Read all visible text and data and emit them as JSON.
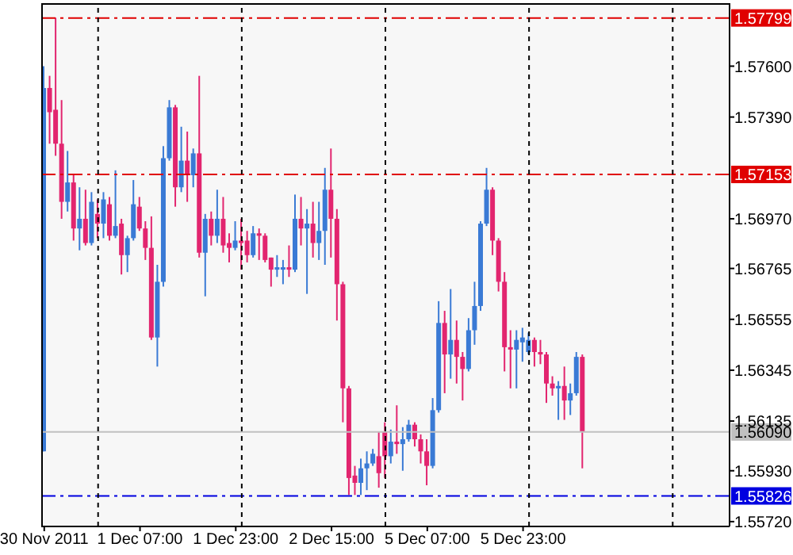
{
  "chart_data": {
    "type": "candlestick",
    "categories": [
      "30 Nov 2011",
      null,
      null,
      null,
      null,
      null,
      null,
      null,
      null,
      null,
      null,
      null,
      null,
      null,
      null,
      null,
      "1 Dec 07:00",
      null,
      null,
      null,
      null,
      null,
      null,
      null,
      null,
      null,
      null,
      null,
      null,
      null,
      null,
      null,
      "1 Dec 23:00",
      null,
      null,
      null,
      null,
      null,
      null,
      null,
      null,
      null,
      null,
      null,
      null,
      null,
      null,
      null,
      "2 Dec 15:00",
      null,
      null,
      null,
      null,
      null,
      null,
      null,
      null,
      null,
      null,
      null,
      null,
      null,
      null,
      null,
      "5 Dec 07:00",
      null,
      null,
      null,
      null,
      null,
      null,
      null,
      null,
      null,
      null,
      null,
      null,
      null,
      null,
      null,
      "5 Dec 23:00",
      null,
      null,
      null,
      null,
      null,
      null,
      null,
      null,
      null,
      null,
      null,
      null,
      null,
      null,
      null,
      null,
      null,
      null,
      null,
      null,
      null,
      null,
      null,
      null,
      null,
      null,
      null,
      null,
      null,
      null,
      null,
      null,
      null,
      null
    ],
    "ohlc": [
      [
        1.5601,
        1.576,
        1.5601,
        1.5751
      ],
      [
        1.5751,
        1.5756,
        1.5728,
        1.5741
      ],
      [
        1.5742,
        1.578,
        1.5723,
        1.5728
      ],
      [
        1.5728,
        1.5746,
        1.5697,
        1.5704
      ],
      [
        1.5704,
        1.5725,
        1.57,
        1.5712
      ],
      [
        1.5712,
        1.5715,
        1.5688,
        1.5693
      ],
      [
        1.5693,
        1.571,
        1.5684,
        1.5697
      ],
      [
        1.5697,
        1.5709,
        1.5686,
        1.5687
      ],
      [
        1.5687,
        1.5708,
        1.5686,
        1.5704
      ],
      [
        1.5699,
        1.5705,
        1.5689,
        1.5695
      ],
      [
        1.5695,
        1.5708,
        1.5689,
        1.5705
      ],
      [
        1.5703,
        1.5706,
        1.5688,
        1.569
      ],
      [
        1.569,
        1.5717,
        1.5689,
        1.5694
      ],
      [
        1.5695,
        1.5697,
        1.5674,
        1.5682
      ],
      [
        1.5682,
        1.569,
        1.5675,
        1.5689
      ],
      [
        1.5689,
        1.5713,
        1.5688,
        1.5703
      ],
      [
        1.5702,
        1.5706,
        1.5692,
        1.5693
      ],
      [
        1.5693,
        1.5696,
        1.568,
        1.5685
      ],
      [
        1.5685,
        1.5698,
        1.5647,
        1.5648
      ],
      [
        1.5648,
        1.5678,
        1.5636,
        1.5671
      ],
      [
        1.5671,
        1.5727,
        1.5669,
        1.5722
      ],
      [
        1.5722,
        1.5746,
        1.5721,
        1.5743
      ],
      [
        1.5743,
        1.5744,
        1.5702,
        1.571
      ],
      [
        1.571,
        1.5735,
        1.5708,
        1.5721
      ],
      [
        1.5721,
        1.5733,
        1.5704,
        1.5715
      ],
      [
        1.5715,
        1.5726,
        1.571,
        1.5724
      ],
      [
        1.5724,
        1.5756,
        1.5681,
        1.5683
      ],
      [
        1.5683,
        1.5699,
        1.5665,
        1.5697
      ],
      [
        1.5697,
        1.57,
        1.5686,
        1.569
      ],
      [
        1.569,
        1.5709,
        1.5687,
        1.5697
      ],
      [
        1.5697,
        1.5706,
        1.5683,
        1.5686
      ],
      [
        1.5687,
        1.5691,
        1.5679,
        1.5685
      ],
      [
        1.5685,
        1.5696,
        1.5684,
        1.5688
      ],
      [
        1.5688,
        1.5697,
        1.5676,
        1.5687
      ],
      [
        1.5688,
        1.5692,
        1.5679,
        1.5682
      ],
      [
        1.5682,
        1.5694,
        1.5681,
        1.5691
      ],
      [
        1.5691,
        1.5693,
        1.568,
        1.569
      ],
      [
        1.569,
        1.5691,
        1.5679,
        1.568
      ],
      [
        1.5681,
        1.5681,
        1.5669,
        1.5676
      ],
      [
        1.5676,
        1.5682,
        1.5673,
        1.5677
      ],
      [
        1.5676,
        1.568,
        1.567,
        1.5677
      ],
      [
        1.5677,
        1.5686,
        1.5673,
        1.5676
      ],
      [
        1.5676,
        1.5707,
        1.5675,
        1.5697
      ],
      [
        1.5697,
        1.5706,
        1.5686,
        1.5693
      ],
      [
        1.5693,
        1.5701,
        1.5666,
        1.5695
      ],
      [
        1.5695,
        1.5704,
        1.5681,
        1.5687
      ],
      [
        1.5687,
        1.5704,
        1.568,
        1.5692
      ],
      [
        1.5692,
        1.5718,
        1.5678,
        1.5709
      ],
      [
        1.5709,
        1.5726,
        1.5681,
        1.5697
      ],
      [
        1.5697,
        1.5701,
        1.5655,
        1.567
      ],
      [
        1.567,
        1.5671,
        1.5613,
        1.5627
      ],
      [
        1.5627,
        1.5628,
        1.5583,
        1.559
      ],
      [
        1.5591,
        1.5595,
        1.5583,
        1.5588
      ],
      [
        1.5588,
        1.5598,
        1.5583,
        1.5594
      ],
      [
        1.5594,
        1.5601,
        1.5585,
        1.5596
      ],
      [
        1.5596,
        1.5602,
        1.5595,
        1.56
      ],
      [
        1.5599,
        1.5609,
        1.5586,
        1.5592
      ],
      [
        1.5609,
        1.5613,
        1.559,
        1.5599
      ],
      [
        1.5599,
        1.561,
        1.5596,
        1.5605
      ],
      [
        1.5605,
        1.562,
        1.56,
        1.5604
      ],
      [
        1.5604,
        1.5611,
        1.5593,
        1.5606
      ],
      [
        1.5606,
        1.5614,
        1.5605,
        1.5612
      ],
      [
        1.5612,
        1.5613,
        1.5603,
        1.5606
      ],
      [
        1.5606,
        1.5608,
        1.5596,
        1.5601
      ],
      [
        1.5601,
        1.5606,
        1.5587,
        1.5595
      ],
      [
        1.5595,
        1.5623,
        1.5594,
        1.5618
      ],
      [
        1.5618,
        1.5663,
        1.5617,
        1.5654
      ],
      [
        1.5654,
        1.5659,
        1.5625,
        1.5641
      ],
      [
        1.5641,
        1.5668,
        1.5631,
        1.5647
      ],
      [
        1.5647,
        1.5655,
        1.5629,
        1.564
      ],
      [
        1.564,
        1.5642,
        1.5622,
        1.5635
      ],
      [
        1.5635,
        1.5656,
        1.5634,
        1.5651
      ],
      [
        1.5651,
        1.5671,
        1.5645,
        1.5661
      ],
      [
        1.5661,
        1.5696,
        1.5659,
        1.5695
      ],
      [
        1.5695,
        1.5718,
        1.5694,
        1.5709
      ],
      [
        1.5709,
        1.571,
        1.5682,
        1.5688
      ],
      [
        1.5688,
        1.5689,
        1.5667,
        1.5671
      ],
      [
        1.5671,
        1.5675,
        1.5634,
        1.5644
      ],
      [
        1.5644,
        1.5651,
        1.5627,
        1.5643
      ],
      [
        1.5643,
        1.5651,
        1.5627,
        1.5647
      ],
      [
        1.5646,
        1.5652,
        1.5638,
        1.5648
      ],
      [
        1.5642,
        1.565,
        1.5641,
        1.5647
      ],
      [
        1.5647,
        1.5648,
        1.5636,
        1.5642
      ],
      [
        1.5642,
        1.5647,
        1.5637,
        1.5641
      ],
      [
        1.5641,
        1.5642,
        1.5621,
        1.5629
      ],
      [
        1.5629,
        1.5632,
        1.5624,
        1.5627
      ],
      [
        1.5627,
        1.563,
        1.5614,
        1.5628
      ],
      [
        1.5628,
        1.5636,
        1.5614,
        1.5622
      ],
      [
        1.5622,
        1.5629,
        1.5616,
        1.5625
      ],
      [
        1.5625,
        1.5642,
        1.5624,
        1.564
      ],
      [
        1.564,
        1.5641,
        1.5594,
        1.5609
      ],
      null,
      null,
      null,
      null,
      null,
      null,
      null,
      null,
      null,
      null,
      null,
      null,
      null,
      null,
      null,
      null,
      null,
      null,
      null,
      null,
      null,
      null,
      null,
      null
    ],
    "colors": [
      "#3a7ad5",
      "#e2256f",
      "#e2256f",
      "#e2256f",
      "#3a7ad5",
      "#e2256f",
      "#3a7ad5",
      "#e2256f",
      "#3a7ad5",
      "#e2256f",
      "#3a7ad5",
      "#e2256f",
      "#3a7ad5",
      "#e2256f",
      "#3a7ad5",
      "#3a7ad5",
      "#e2256f",
      "#e2256f",
      "#e2256f",
      "#3a7ad5",
      "#3a7ad5",
      "#3a7ad5",
      "#e2256f",
      "#3a7ad5",
      "#e2256f",
      "#3a7ad5",
      "#e2256f",
      "#3a7ad5",
      "#e2256f",
      "#3a7ad5",
      "#e2256f",
      "#e2256f",
      "#3a7ad5",
      "#e2256f",
      "#e2256f",
      "#3a7ad5",
      "#e2256f",
      "#e2256f",
      "#e2256f",
      "#3a7ad5",
      "#3a7ad5",
      "#e2256f",
      "#3a7ad5",
      "#e2256f",
      "#3a7ad5",
      "#e2256f",
      "#3a7ad5",
      "#3a7ad5",
      "#e2256f",
      "#e2256f",
      "#e2256f",
      "#e2256f",
      "#e2256f",
      "#3a7ad5",
      "#3a7ad5",
      "#3a7ad5",
      "#e2256f",
      "#e2256f",
      "#3a7ad5",
      "#e2256f",
      "#3a7ad5",
      "#3a7ad5",
      "#e2256f",
      "#e2256f",
      "#e2256f",
      "#3a7ad5",
      "#3a7ad5",
      "#e2256f",
      "#3a7ad5",
      "#e2256f",
      "#e2256f",
      "#3a7ad5",
      "#3a7ad5",
      "#3a7ad5",
      "#3a7ad5",
      "#e2256f",
      "#e2256f",
      "#e2256f",
      "#e2256f",
      "#3a7ad5",
      "#3a7ad5",
      "#3a7ad5",
      "#e2256f",
      "#e2256f",
      "#e2256f",
      "#e2256f",
      "#3a7ad5",
      "#e2256f",
      "#3a7ad5",
      "#3a7ad5",
      "#e2256f",
      null,
      null,
      null,
      null,
      null,
      null,
      null,
      null,
      null,
      null,
      null,
      null,
      null,
      null,
      null,
      null,
      null,
      null,
      null,
      null,
      null,
      null,
      null,
      null
    ],
    "ylim": [
      1.557,
      1.5786
    ],
    "grid": "x",
    "yticks": [
      {
        "value": 1.576,
        "label": "1.57600"
      },
      {
        "value": 1.5739,
        "label": "1.57390"
      },
      {
        "value": 1.5697,
        "label": "1.56970"
      },
      1.56765,
      1.56555,
      1.56345,
      1.56135,
      {
        "value": 1.5593,
        "label": "1.55930"
      },
      {
        "value": 1.5572,
        "label": "1.55720"
      }
    ],
    "ref_lines": [
      {
        "axis": "y",
        "value": 1.57799,
        "label": "1.57799",
        "color": "#e00000",
        "line_style": "dashed"
      },
      {
        "axis": "y",
        "value": 1.57153,
        "label": "1.57153",
        "color": "#e00000",
        "line_style": "dashed"
      },
      {
        "axis": "y",
        "value": 1.5609,
        "label": "1.56090",
        "color": "#c0c0c0",
        "line_style": "solid"
      },
      {
        "axis": "y",
        "value": 1.55826,
        "label": "1.55826",
        "color": "#0000e0",
        "line_style": "dashed"
      }
    ]
  }
}
